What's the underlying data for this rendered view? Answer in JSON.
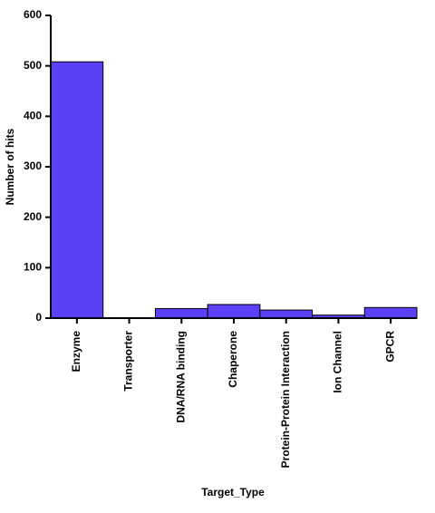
{
  "chart_data": {
    "type": "bar",
    "x_label": "Target_Type",
    "y_label": "Number of hits",
    "categories": [
      "Enzyme",
      "Transporter",
      "DNA/RNA binding",
      "Chaperone",
      "Protein-Protein Interaction",
      "Ion Channel",
      "GPCR"
    ],
    "values": [
      508,
      1,
      19,
      27,
      16,
      6,
      21
    ],
    "color": "#5c40f6",
    "ylim": [
      0,
      600
    ],
    "yticks": [
      0,
      100,
      200,
      300,
      400,
      500,
      600
    ]
  }
}
